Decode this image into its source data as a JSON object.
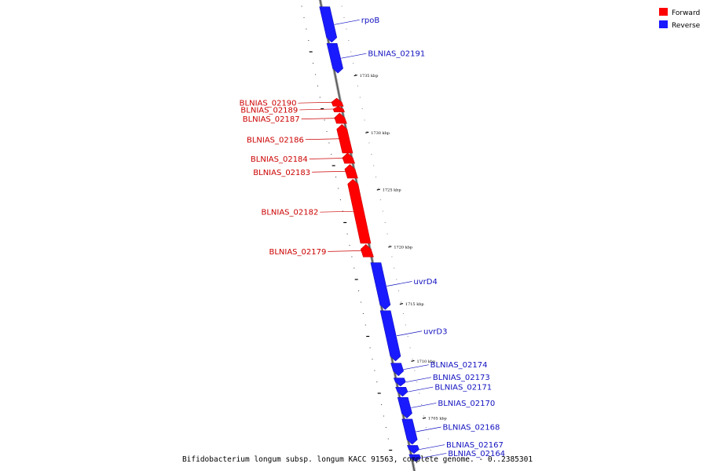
{
  "legend": {
    "forward": {
      "label": "Forward",
      "color": "#ff0000"
    },
    "reverse": {
      "label": "Reverse",
      "color": "#1a1aff"
    }
  },
  "caption": "Bifidobacterium longum subsp. longum KACC 91563, complete genome. - 0..2385301",
  "genes": [
    {
      "name": "rpoB",
      "strand": "reverse",
      "start": 1737.9,
      "end": 1741.0
    },
    {
      "name": "BLNIAS_02191",
      "strand": "reverse",
      "start": 1735.2,
      "end": 1737.8
    },
    {
      "name": "BLNIAS_02190",
      "strand": "forward",
      "start": 1732.3,
      "end": 1733.0
    },
    {
      "name": "BLNIAS_02189",
      "strand": "forward",
      "start": 1731.8,
      "end": 1732.3
    },
    {
      "name": "BLNIAS_02187",
      "strand": "forward",
      "start": 1730.8,
      "end": 1731.7
    },
    {
      "name": "BLNIAS_02186",
      "strand": "forward",
      "start": 1728.2,
      "end": 1730.7
    },
    {
      "name": "BLNIAS_02184",
      "strand": "forward",
      "start": 1727.3,
      "end": 1728.2
    },
    {
      "name": "BLNIAS_02183",
      "strand": "forward",
      "start": 1726.0,
      "end": 1727.2
    },
    {
      "name": "BLNIAS_02182",
      "strand": "forward",
      "start": 1720.3,
      "end": 1725.9
    },
    {
      "name": "BLNIAS_02179",
      "strand": "forward",
      "start": 1719.1,
      "end": 1720.2
    },
    {
      "name": "uvrD4",
      "strand": "reverse",
      "start": 1714.5,
      "end": 1718.6
    },
    {
      "name": "uvrD3",
      "strand": "reverse",
      "start": 1710.0,
      "end": 1714.4
    },
    {
      "name": "BLNIAS_02174",
      "strand": "reverse",
      "start": 1708.7,
      "end": 1709.8
    },
    {
      "name": "BLNIAS_02173",
      "strand": "reverse",
      "start": 1707.8,
      "end": 1708.5
    },
    {
      "name": "BLNIAS_02171",
      "strand": "reverse",
      "start": 1706.9,
      "end": 1707.7
    },
    {
      "name": "BLNIAS_02170",
      "strand": "reverse",
      "start": 1705.0,
      "end": 1706.8
    },
    {
      "name": "BLNIAS_02168",
      "strand": "reverse",
      "start": 1702.7,
      "end": 1704.9
    },
    {
      "name": "BLNIAS_02167",
      "strand": "reverse",
      "start": 1701.9,
      "end": 1702.6
    },
    {
      "name": "BLNIAS_02164",
      "strand": "reverse",
      "start": 1701.2,
      "end": 1701.8
    }
  ],
  "ticks": [
    "1735 kbp",
    "1730 kbp",
    "1725 kbp",
    "1720 kbp",
    "1715 kbp",
    "1710 kbp",
    "1705 kbp"
  ],
  "tick_values": [
    1735,
    1730,
    1725,
    1720,
    1715,
    1710,
    1705
  ]
}
